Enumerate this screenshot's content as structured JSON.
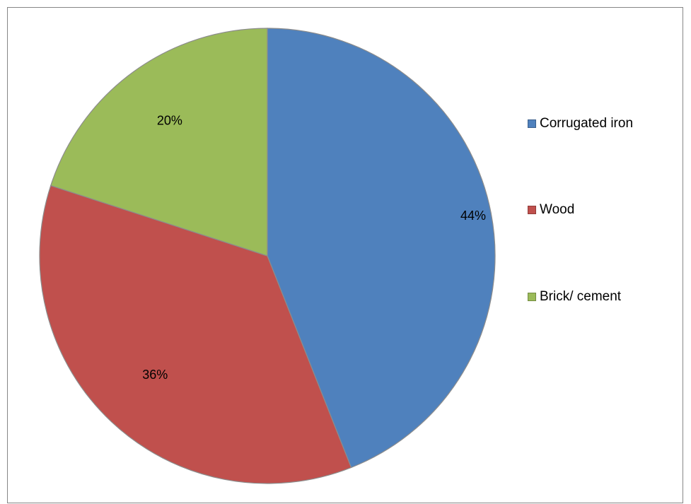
{
  "chart_data": {
    "type": "pie",
    "categories": [
      "Corrugated iron",
      "Wood",
      "Brick/ cement"
    ],
    "values": [
      44,
      36,
      20
    ],
    "labels": [
      "44%",
      "36%",
      "20%"
    ],
    "colors": [
      "#4f81bd",
      "#c0504d",
      "#9bbb59"
    ],
    "legend_position": "right",
    "title": ""
  }
}
